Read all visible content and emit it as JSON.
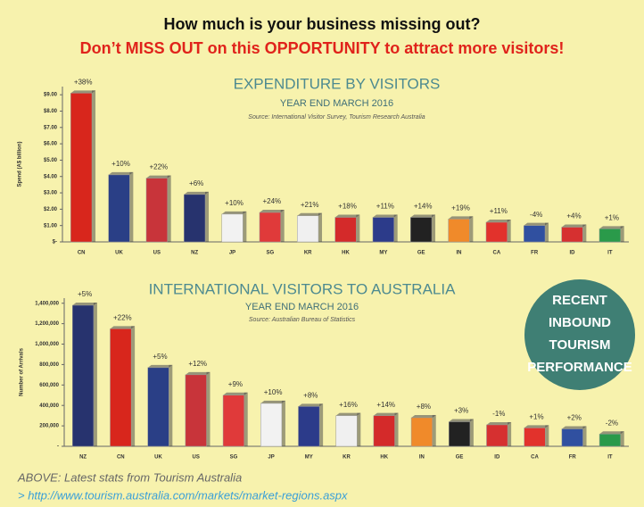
{
  "header": {
    "line1": "How much is your business missing out?",
    "line2": "Don’t MISS OUT on this OPPORTUNITY to attract more visitors!"
  },
  "chart_data": [
    {
      "type": "bar",
      "title": "EXPENDITURE BY VISITORS",
      "subtitle": "YEAR END MARCH 2016",
      "source": "Source: International Visitor Survey, Tourism Research Australia",
      "y_label": "Spend (A$ billion)",
      "categories": [
        "CN",
        "UK",
        "US",
        "NZ",
        "JP",
        "SG",
        "KR",
        "HK",
        "MY",
        "GE",
        "IN",
        "CA",
        "FR",
        "ID",
        "IT"
      ],
      "values": [
        9.1,
        4.1,
        3.9,
        2.9,
        1.7,
        1.8,
        1.6,
        1.5,
        1.5,
        1.5,
        1.4,
        1.2,
        1.0,
        0.9,
        0.8
      ],
      "annotations": [
        "+38%",
        "+10%",
        "+22%",
        "+6%",
        "+10%",
        "+24%",
        "+21%",
        "+18%",
        "+11%",
        "+14%",
        "+19%",
        "+11%",
        "-4%",
        "+4%",
        "+1%"
      ],
      "colors": [
        "#d8261c",
        "#2a3f86",
        "#c8343a",
        "#27336e",
        "#f2f2f2",
        "#e03a3a",
        "#f0f0f0",
        "#d42a2a",
        "#2c3b8a",
        "#222222",
        "#f08a2a",
        "#e2322c",
        "#3050a0",
        "#d63030",
        "#2a9a4a"
      ],
      "ylim": [
        0,
        9.5
      ],
      "yticks": [
        {
          "value": 0,
          "label": "$-"
        },
        {
          "value": 1,
          "label": "$1.00"
        },
        {
          "value": 2,
          "label": "$2.00"
        },
        {
          "value": 3,
          "label": "$3.00"
        },
        {
          "value": 4,
          "label": "$4.00"
        },
        {
          "value": 5,
          "label": "$5.00"
        },
        {
          "value": 6,
          "label": "$6.00"
        },
        {
          "value": 7,
          "label": "$7.00"
        },
        {
          "value": 8,
          "label": "$8.00"
        },
        {
          "value": 9,
          "label": "$9.00"
        }
      ]
    },
    {
      "type": "bar",
      "title": "INTERNATIONAL VISITORS TO AUSTRALIA",
      "subtitle": "YEAR END MARCH 2016",
      "source": "Source: Australian Bureau of Statistics",
      "y_label": "Number of Arrivals",
      "categories": [
        "NZ",
        "CN",
        "UK",
        "US",
        "SG",
        "JP",
        "MY",
        "KR",
        "HK",
        "IN",
        "GE",
        "ID",
        "CA",
        "FR",
        "IT"
      ],
      "values": [
        1380000,
        1150000,
        770000,
        700000,
        500000,
        420000,
        390000,
        300000,
        300000,
        280000,
        240000,
        210000,
        180000,
        170000,
        120000
      ],
      "annotations": [
        "+5%",
        "+22%",
        "+5%",
        "+12%",
        "+9%",
        "+10%",
        "+8%",
        "+16%",
        "+14%",
        "+8%",
        "+3%",
        "-1%",
        "+1%",
        "+2%",
        "-2%"
      ],
      "colors": [
        "#27336e",
        "#d8261c",
        "#2a3f86",
        "#c8343a",
        "#e03a3a",
        "#f2f2f2",
        "#2c3b8a",
        "#f0f0f0",
        "#d42a2a",
        "#f08a2a",
        "#222222",
        "#d63030",
        "#e2322c",
        "#3050a0",
        "#2a9a4a"
      ],
      "ylim": [
        0,
        1450000
      ],
      "yticks": [
        {
          "value": 0,
          "label": "-"
        },
        {
          "value": 200000,
          "label": "200,000"
        },
        {
          "value": 400000,
          "label": "400,000"
        },
        {
          "value": 600000,
          "label": "600,000"
        },
        {
          "value": 800000,
          "label": "800,000"
        },
        {
          "value": 1000000,
          "label": "1,000,000"
        },
        {
          "value": 1200000,
          "label": "1,200,000"
        },
        {
          "value": 1400000,
          "label": "1,400,000"
        }
      ]
    }
  ],
  "badge": {
    "lines": [
      "RECENT",
      "INBOUND",
      "TOURISM",
      "PERFORMANCE"
    ]
  },
  "footer": {
    "caption": "ABOVE: Latest stats from Tourism Australia",
    "link": "> http://www.tourism.australia.com/markets/market-regions.aspx"
  }
}
